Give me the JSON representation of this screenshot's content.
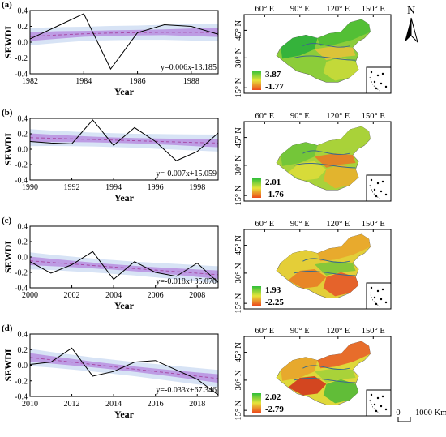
{
  "chart_data": [
    {
      "type": "line",
      "panel_label": "(a)",
      "x": [
        1982,
        1983,
        1984,
        1985,
        1986,
        1987,
        1988,
        1989
      ],
      "series": [
        {
          "values": [
            0.04,
            0.2,
            0.36,
            -0.34,
            0.12,
            0.22,
            0.2,
            0.1
          ]
        }
      ],
      "trend": [
        0.07,
        0.09,
        0.105,
        0.115,
        0.12,
        0.125,
        0.125,
        0.12
      ],
      "xticks": [
        "1982",
        "1984",
        "1986",
        "1988"
      ],
      "xlim": [
        1982,
        1989
      ],
      "ylim": [
        -0.4,
        0.4
      ],
      "yticks": [
        "-0.4",
        "-0.2",
        "0.0",
        "0.2",
        "0.4"
      ],
      "xlabel": "Year",
      "ylabel": "SEWDI",
      "equation": "y=0.006x-13.185",
      "map_legend": {
        "max": "3.87",
        "min": "-1.77"
      }
    },
    {
      "type": "line",
      "panel_label": "(b)",
      "x": [
        1990,
        1991,
        1992,
        1993,
        1994,
        1995,
        1996,
        1997,
        1998,
        1999
      ],
      "series": [
        {
          "values": [
            0.1,
            0.08,
            0.07,
            0.38,
            0.05,
            0.28,
            0.1,
            -0.15,
            -0.03,
            0.21
          ]
        }
      ],
      "trend": [
        0.15,
        0.142,
        0.134,
        0.126,
        0.118,
        0.11,
        0.102,
        0.094,
        0.086,
        0.08
      ],
      "xticks": [
        "1990",
        "1992",
        "1994",
        "1996",
        "1998"
      ],
      "xlim": [
        1990,
        1999
      ],
      "ylim": [
        -0.4,
        0.4
      ],
      "yticks": [
        "-0.4",
        "-0.2",
        "0.0",
        "0.2",
        "0.4"
      ],
      "xlabel": "Year",
      "ylabel": "SEWDI",
      "equation": "y=-0.007x+15.059",
      "map_legend": {
        "max": "2.01",
        "min": "-1.76"
      }
    },
    {
      "type": "line",
      "panel_label": "(c)",
      "x": [
        2000,
        2001,
        2002,
        2003,
        2004,
        2005,
        2006,
        2007,
        2008,
        2009
      ],
      "series": [
        {
          "values": [
            -0.06,
            -0.21,
            -0.1,
            0.07,
            -0.29,
            -0.06,
            -0.2,
            -0.25,
            -0.08,
            -0.33
          ]
        }
      ],
      "trend": [
        -0.05,
        -0.07,
        -0.09,
        -0.11,
        -0.13,
        -0.15,
        -0.17,
        -0.19,
        -0.21,
        -0.23
      ],
      "xticks": [
        "2000",
        "2002",
        "2004",
        "2006",
        "2008"
      ],
      "xlim": [
        2000,
        2009
      ],
      "ylim": [
        -0.4,
        0.4
      ],
      "yticks": [
        "-0.4",
        "-0.2",
        "0.0",
        "0.2",
        "0.4"
      ],
      "xlabel": "Year",
      "ylabel": "SEWDI",
      "equation": "y=-0.018x+35.070",
      "map_legend": {
        "max": "1.93",
        "min": "-2.25"
      }
    },
    {
      "type": "line",
      "panel_label": "(d)",
      "x": [
        2010,
        2011,
        2012,
        2013,
        2014,
        2015,
        2016,
        2017,
        2018,
        2019
      ],
      "series": [
        {
          "values": [
            0.01,
            0.04,
            0.22,
            -0.14,
            -0.08,
            0.04,
            0.06,
            -0.06,
            -0.18,
            -0.38
          ]
        }
      ],
      "trend": [
        0.1,
        0.07,
        0.04,
        0.01,
        -0.02,
        -0.05,
        -0.08,
        -0.11,
        -0.14,
        -0.17
      ],
      "xticks": [
        "2010",
        "2012",
        "2014",
        "2016",
        "2018"
      ],
      "xlim": [
        2010,
        2019
      ],
      "ylim": [
        -0.4,
        0.4
      ],
      "yticks": [
        "-0.4",
        "-0.2",
        "0.0",
        "0.2",
        "0.4"
      ],
      "xlabel": "Year",
      "ylabel": "SEWDI",
      "equation": "y=-0.033x+67.346",
      "map_legend": {
        "max": "2.02",
        "min": "-2.79"
      }
    }
  ],
  "map_axes": {
    "lon_ticks": [
      "60° E",
      "90° E",
      "120° E",
      "150° E"
    ],
    "lat_ticks": [
      "45° N",
      "30° N",
      "15° N"
    ]
  },
  "north_arrow": "N",
  "scale_bar": {
    "zero": "0",
    "label": "1000 Km"
  },
  "colors": {
    "line": "#000000",
    "trend": "#a64ca6",
    "band_outer": "#c9d9f2",
    "band_inner": "#b88fe0",
    "map_high": "#22a83a",
    "map_mid": "#e8e23a",
    "map_low": "#e8301c",
    "river": "#3d6b8a"
  }
}
